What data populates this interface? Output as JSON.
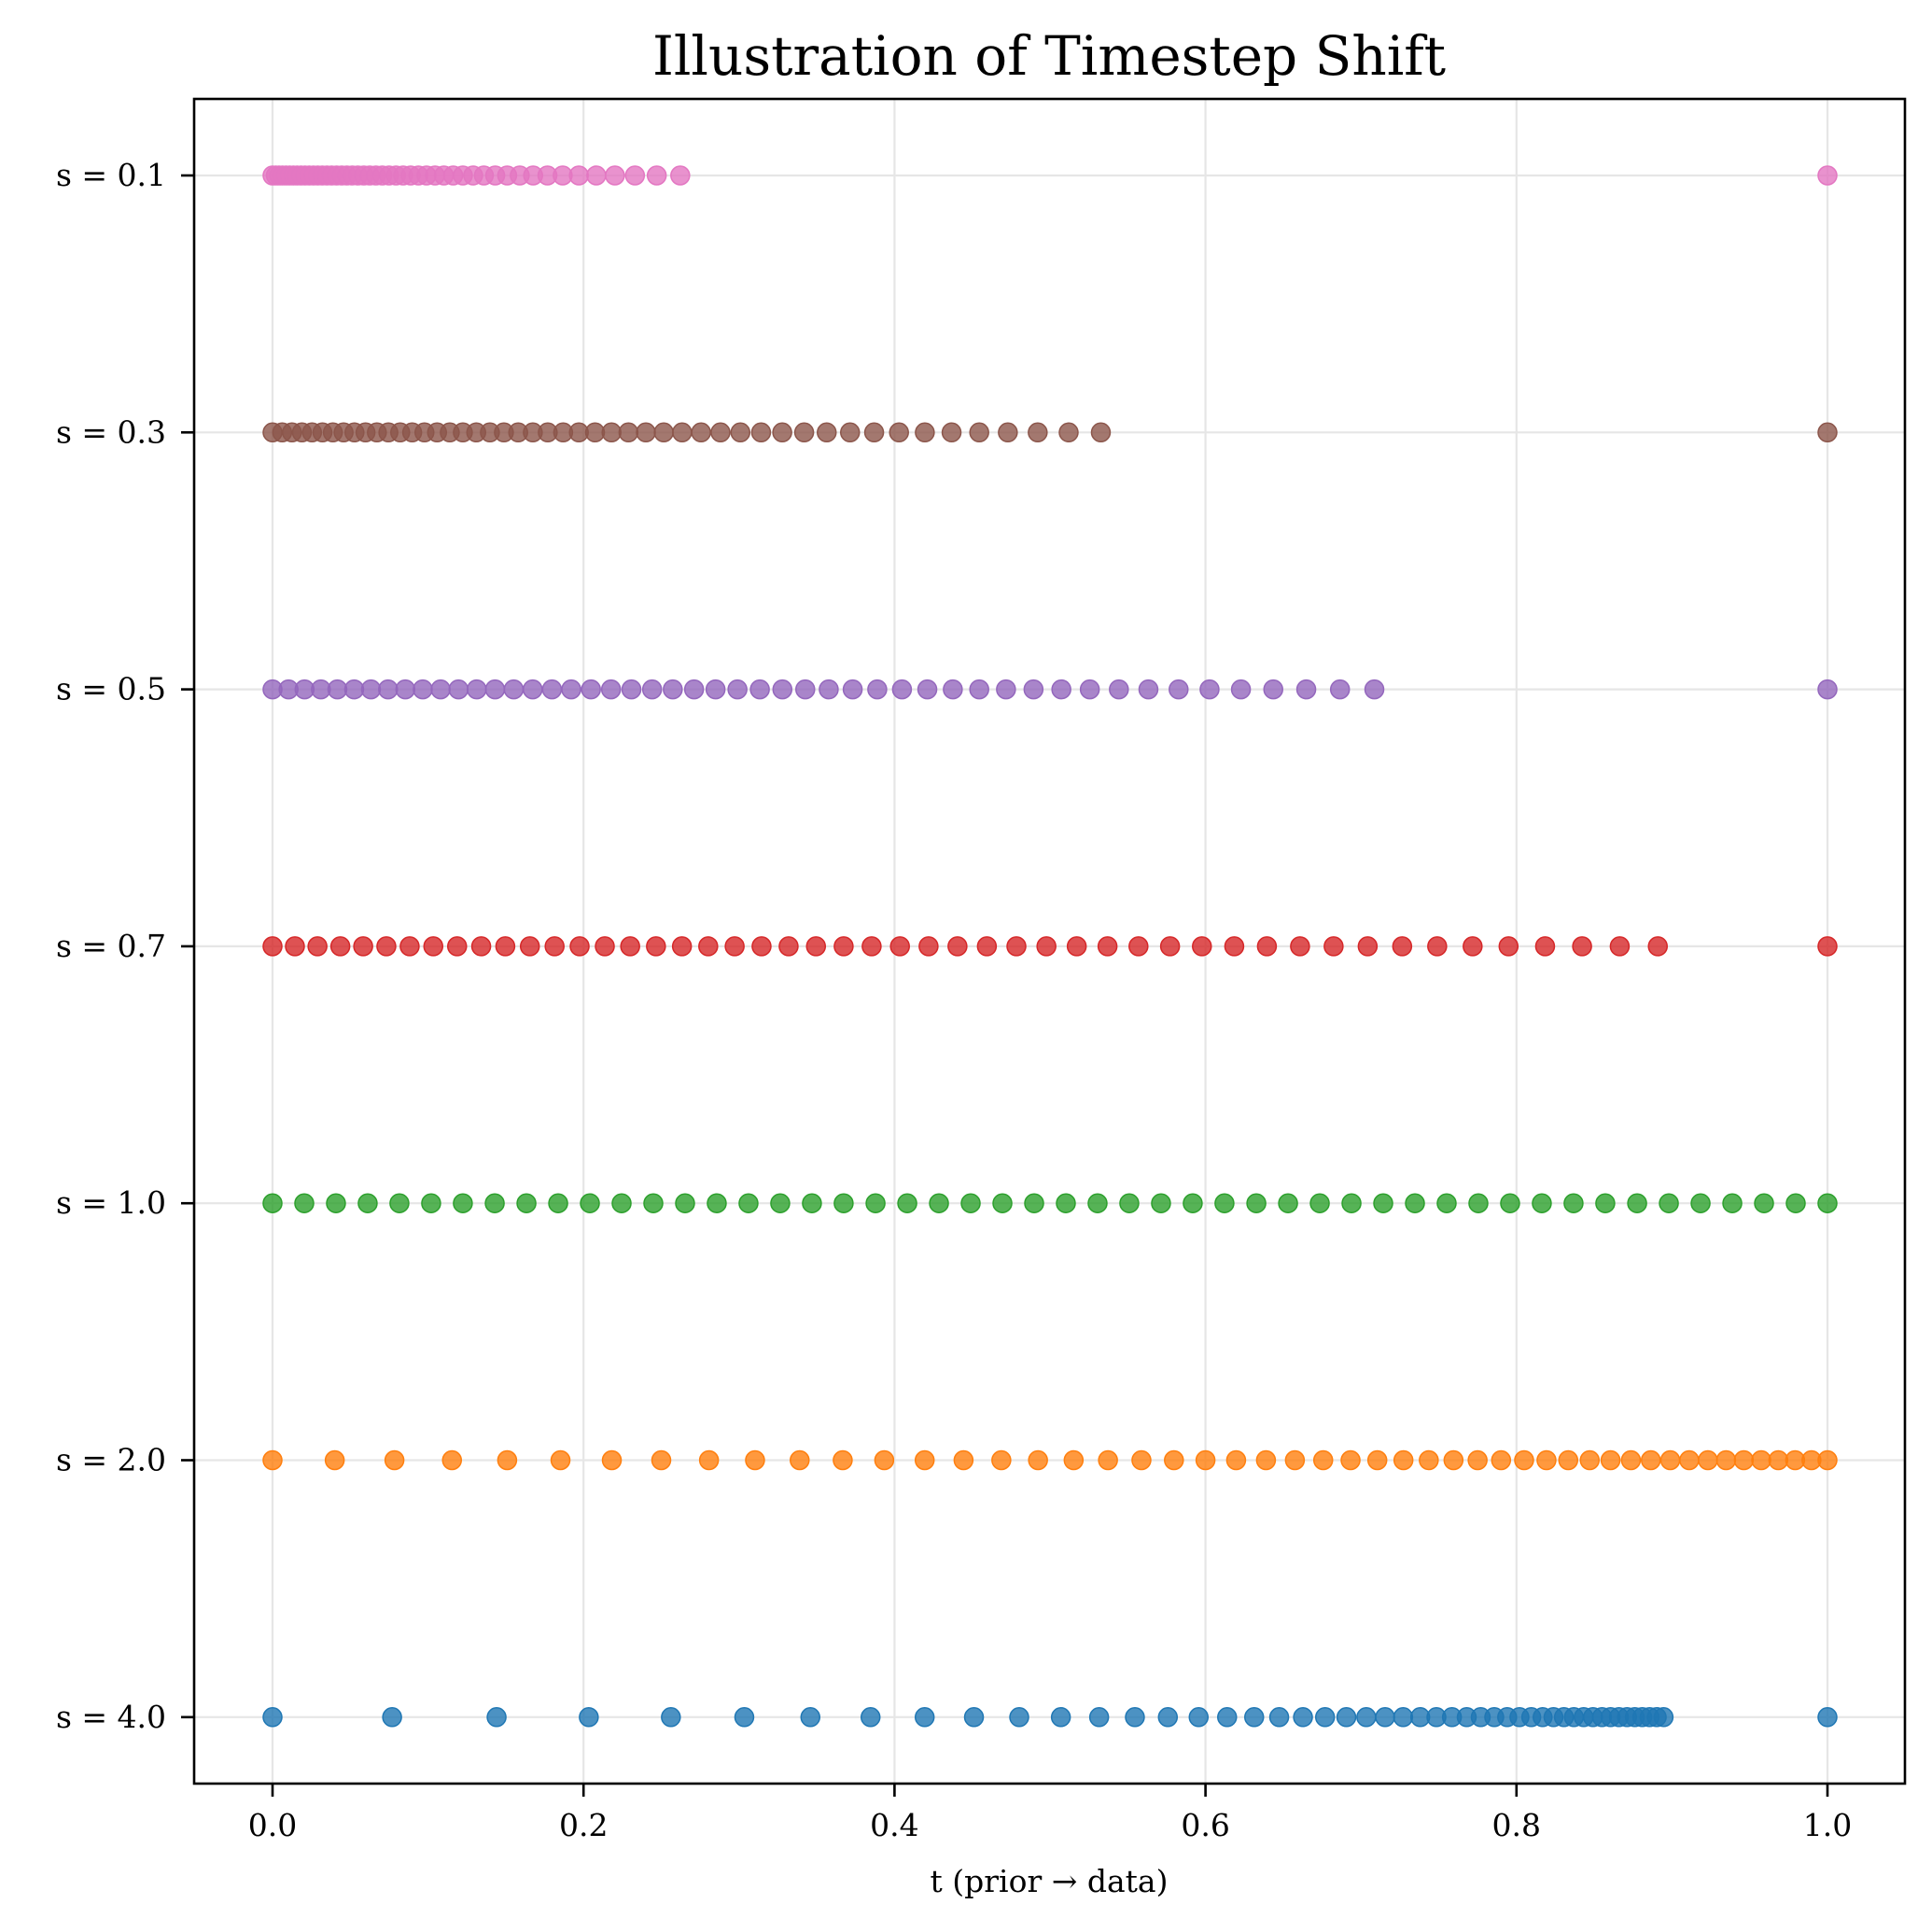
{
  "chart_data": {
    "type": "scatter",
    "title": "Illustration of Timestep Shift",
    "xlabel": "t (prior → data)",
    "ylabel": "",
    "xlim": [
      -0.05,
      1.05
    ],
    "x_ticks": [
      0.0,
      0.2,
      0.4,
      0.6,
      0.8,
      1.0
    ],
    "x_tick_labels": [
      "0.0",
      "0.2",
      "0.4",
      "0.6",
      "0.8",
      "1.0"
    ],
    "y_tick_labels": [
      "s = 0.1",
      "s = 0.3",
      "s = 0.5",
      "s = 0.7",
      "s = 1.0",
      "s = 2.0",
      "s = 4.0"
    ],
    "grid": true,
    "legend": "none",
    "points_per_series": 50,
    "series": [
      {
        "name": "s = 0.1",
        "shift": 0.1,
        "color": "#e377c2",
        "values": [
          0.0,
          0.0021,
          0.0042,
          0.0064,
          0.0087,
          0.011,
          0.0134,
          0.0158,
          0.0183,
          0.0209,
          0.0236,
          0.0263,
          0.0291,
          0.032,
          0.035,
          0.038,
          0.0412,
          0.0445,
          0.0478,
          0.0513,
          0.0549,
          0.0587,
          0.0625,
          0.0665,
          0.0706,
          0.0749,
          0.0794,
          0.084,
          0.0888,
          0.0938,
          0.099,
          0.1045,
          0.1102,
          0.1162,
          0.1224,
          0.129,
          0.1359,
          0.1432,
          0.1509,
          0.159,
          0.1676,
          0.1768,
          0.1866,
          0.197,
          0.2082,
          0.2202,
          0.2331,
          0.2471,
          0.2622,
          1.0
        ]
      },
      {
        "name": "s = 0.3",
        "shift": 0.3,
        "color": "#8c564b",
        "values": [
          0.0,
          0.0062,
          0.0125,
          0.0189,
          0.0254,
          0.0321,
          0.0388,
          0.0457,
          0.0527,
          0.0598,
          0.0671,
          0.0745,
          0.0821,
          0.0898,
          0.0977,
          0.1058,
          0.114,
          0.1224,
          0.131,
          0.1398,
          0.1488,
          0.158,
          0.1674,
          0.177,
          0.1869,
          0.197,
          0.2074,
          0.218,
          0.2289,
          0.2401,
          0.2516,
          0.2634,
          0.2756,
          0.2881,
          0.3009,
          0.3142,
          0.3278,
          0.3419,
          0.3564,
          0.3714,
          0.3869,
          0.4029,
          0.4195,
          0.4367,
          0.4545,
          0.4729,
          0.4921,
          0.512,
          0.5327,
          1.0
        ]
      },
      {
        "name": "s = 0.5",
        "shift": 0.5,
        "color": "#9467bd",
        "values": [
          0.0,
          0.0103,
          0.0206,
          0.0311,
          0.0417,
          0.0525,
          0.0633,
          0.0743,
          0.0854,
          0.0966,
          0.1081,
          0.1196,
          0.1313,
          0.1431,
          0.1551,
          0.1673,
          0.1797,
          0.1921,
          0.2048,
          0.2177,
          0.2308,
          0.2441,
          0.2574,
          0.2711,
          0.2849,
          0.299,
          0.3134,
          0.3279,
          0.3426,
          0.3577,
          0.3731,
          0.3889,
          0.4048,
          0.4211,
          0.4375,
          0.4545,
          0.4717,
          0.4894,
          0.5073,
          0.5256,
          0.5443,
          0.5633,
          0.5827,
          0.6026,
          0.6228,
          0.6436,
          0.6648,
          0.6865,
          0.7086,
          1.0
        ]
      },
      {
        "name": "s = 0.7",
        "shift": 0.7,
        "color": "#d62728",
        "values": [
          0.0,
          0.0144,
          0.0289,
          0.0436,
          0.0583,
          0.0732,
          0.0882,
          0.1034,
          0.1187,
          0.1342,
          0.1497,
          0.1655,
          0.1814,
          0.1975,
          0.2137,
          0.23,
          0.2466,
          0.2633,
          0.2802,
          0.2972,
          0.3145,
          0.3319,
          0.3495,
          0.3673,
          0.3853,
          0.4035,
          0.4219,
          0.4405,
          0.4594,
          0.4784,
          0.4977,
          0.5172,
          0.537,
          0.5569,
          0.5772,
          0.5977,
          0.6185,
          0.6395,
          0.6608,
          0.6824,
          0.7043,
          0.7265,
          0.749,
          0.7718,
          0.7949,
          0.8184,
          0.8422,
          0.8664,
          0.8909,
          1.0
        ]
      },
      {
        "name": "s = 1.0",
        "shift": 1.0,
        "color": "#2ca02c",
        "values": [
          0.0,
          0.0204,
          0.0408,
          0.0612,
          0.0816,
          0.102,
          0.1224,
          0.1429,
          0.1633,
          0.1837,
          0.2041,
          0.2245,
          0.2449,
          0.2653,
          0.2857,
          0.3061,
          0.3265,
          0.3469,
          0.3673,
          0.3878,
          0.4082,
          0.4286,
          0.449,
          0.4694,
          0.4898,
          0.5102,
          0.5306,
          0.551,
          0.5714,
          0.5918,
          0.6122,
          0.6327,
          0.6531,
          0.6735,
          0.6939,
          0.7143,
          0.7347,
          0.7551,
          0.7755,
          0.7959,
          0.8163,
          0.8367,
          0.8571,
          0.8776,
          0.898,
          0.9184,
          0.9388,
          0.9592,
          0.9796,
          1.0
        ]
      },
      {
        "name": "s = 2.0",
        "shift": 2.0,
        "color": "#ff7f0e",
        "values": [
          0.0,
          0.04,
          0.0784,
          0.1154,
          0.1509,
          0.1852,
          0.2182,
          0.25,
          0.2807,
          0.3103,
          0.339,
          0.3667,
          0.3934,
          0.4194,
          0.4444,
          0.4687,
          0.4923,
          0.5152,
          0.5373,
          0.5588,
          0.5797,
          0.6,
          0.6197,
          0.6389,
          0.6575,
          0.6757,
          0.6933,
          0.7105,
          0.7273,
          0.7436,
          0.7595,
          0.775,
          0.7901,
          0.8049,
          0.8193,
          0.8333,
          0.8471,
          0.8605,
          0.8736,
          0.8864,
          0.8989,
          0.9111,
          0.9231,
          0.9348,
          0.9462,
          0.9574,
          0.9684,
          0.9792,
          0.9897,
          1.0
        ]
      },
      {
        "name": "s = 4.0",
        "shift": 4.0,
        "color": "#1f77b4",
        "values": [
          0.0,
          0.0769,
          0.1441,
          0.2034,
          0.2562,
          0.3034,
          0.3459,
          0.3846,
          0.4194,
          0.4511,
          0.4802,
          0.507,
          0.5316,
          0.5546,
          0.5758,
          0.5956,
          0.6139,
          0.6313,
          0.6474,
          0.6627,
          0.6769,
          0.6906,
          0.7034,
          0.7155,
          0.7271,
          0.7381,
          0.7485,
          0.7585,
          0.768,
          0.777,
          0.7857,
          0.794,
          0.8019,
          0.8095,
          0.8168,
          0.8238,
          0.8305,
          0.8369,
          0.8432,
          0.8492,
          0.855,
          0.8605,
          0.8659,
          0.8711,
          0.8761,
          0.8809,
          0.8856,
          0.8902,
          0.8946,
          1.0
        ]
      }
    ]
  }
}
